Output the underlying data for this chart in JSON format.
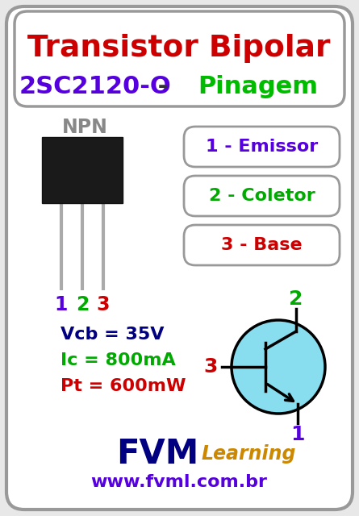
{
  "bg_color": "#e8e8e8",
  "border_color": "#999999",
  "title1": "Transistor Bipolar",
  "title1_color": "#cc0000",
  "title2_part1": "2SC2120-O",
  "title2_color1": "#5500dd",
  "title2_dash": " - ",
  "title2_dash_color": "#333333",
  "title2_part2": "Pinagem",
  "title2_color2": "#00bb00",
  "npn_label": "NPN",
  "npn_color": "#888888",
  "pin_labels": [
    "1",
    "2",
    "3"
  ],
  "pin_colors": [
    "#5500dd",
    "#00aa00",
    "#cc0000"
  ],
  "pin_names": [
    "1 - Emissor",
    "2 - Coletor",
    "3 - Base"
  ],
  "pin_name_colors": [
    "#5500dd",
    "#00aa00",
    "#cc0000"
  ],
  "box_edge_color": "#999999",
  "vcb_label": "Vcb = 35V",
  "vcb_color": "#000080",
  "ic_label": "Ic = 800mA",
  "ic_color": "#00aa00",
  "pt_label": "Pt = 600mW",
  "pt_color": "#cc0000",
  "fvm_color": "#000080",
  "learning_color": "#cc8800",
  "website": "www.fvml.com.br",
  "website_color": "#5500dd",
  "transistor_circle_color": "#88ddee",
  "transistor_circle_edge": "#000000",
  "label2_schematic": "2",
  "label2_color": "#00aa00",
  "label3_schematic": "3",
  "label3_color": "#cc0000",
  "label1_schematic": "1",
  "label1_color": "#5500dd"
}
